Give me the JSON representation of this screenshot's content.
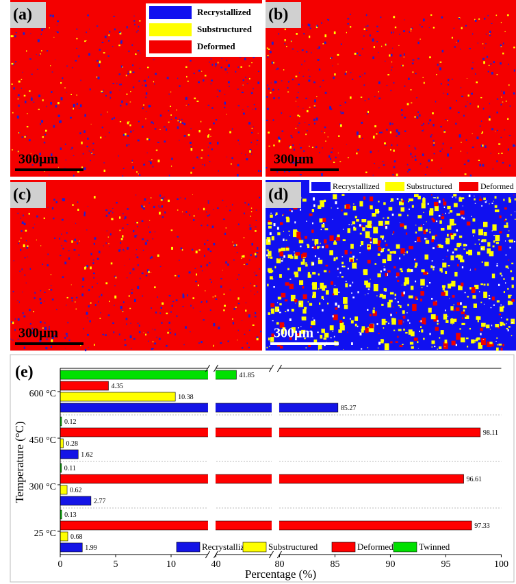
{
  "maps": [
    {
      "label": "(a)",
      "scale": "300μm"
    },
    {
      "label": "(b)",
      "scale": "300μm"
    },
    {
      "label": "(c)",
      "scale": "300μm"
    },
    {
      "label": "(d)",
      "scale": "300μm"
    }
  ],
  "map_legend_a": [
    "Recrystallized",
    "Substructured",
    "Deformed"
  ],
  "map_legend_d": [
    "Recrystallized",
    "Substructured",
    "Deformed"
  ],
  "chart_data": {
    "type": "bar",
    "orientation": "horizontal",
    "panel_label": "(e)",
    "x_label": "Percentage (%)",
    "y_label": "Temperature (°C)",
    "categories": [
      "25 °C",
      "300 °C",
      "450 °C",
      "600 °C"
    ],
    "series": [
      {
        "name": "Recrystallized",
        "color": "#1414e6",
        "values": [
          1.99,
          2.77,
          1.62,
          85.27
        ]
      },
      {
        "name": "Substructured",
        "color": "#ffff00",
        "values": [
          0.68,
          0.62,
          0.28,
          10.38
        ]
      },
      {
        "name": "Deformed",
        "color": "#ff0000",
        "values": [
          97.33,
          96.61,
          98.11,
          4.35
        ]
      },
      {
        "name": "Twinned",
        "color": "#00e000",
        "values": [
          0.13,
          0.11,
          0.12,
          41.85
        ]
      }
    ],
    "x_segments": [
      [
        0,
        13.3
      ],
      [
        40,
        45
      ],
      [
        80,
        100
      ]
    ],
    "xticks": [
      0,
      5,
      10,
      40,
      80,
      85,
      90,
      95,
      100
    ],
    "legend": "lower right"
  }
}
